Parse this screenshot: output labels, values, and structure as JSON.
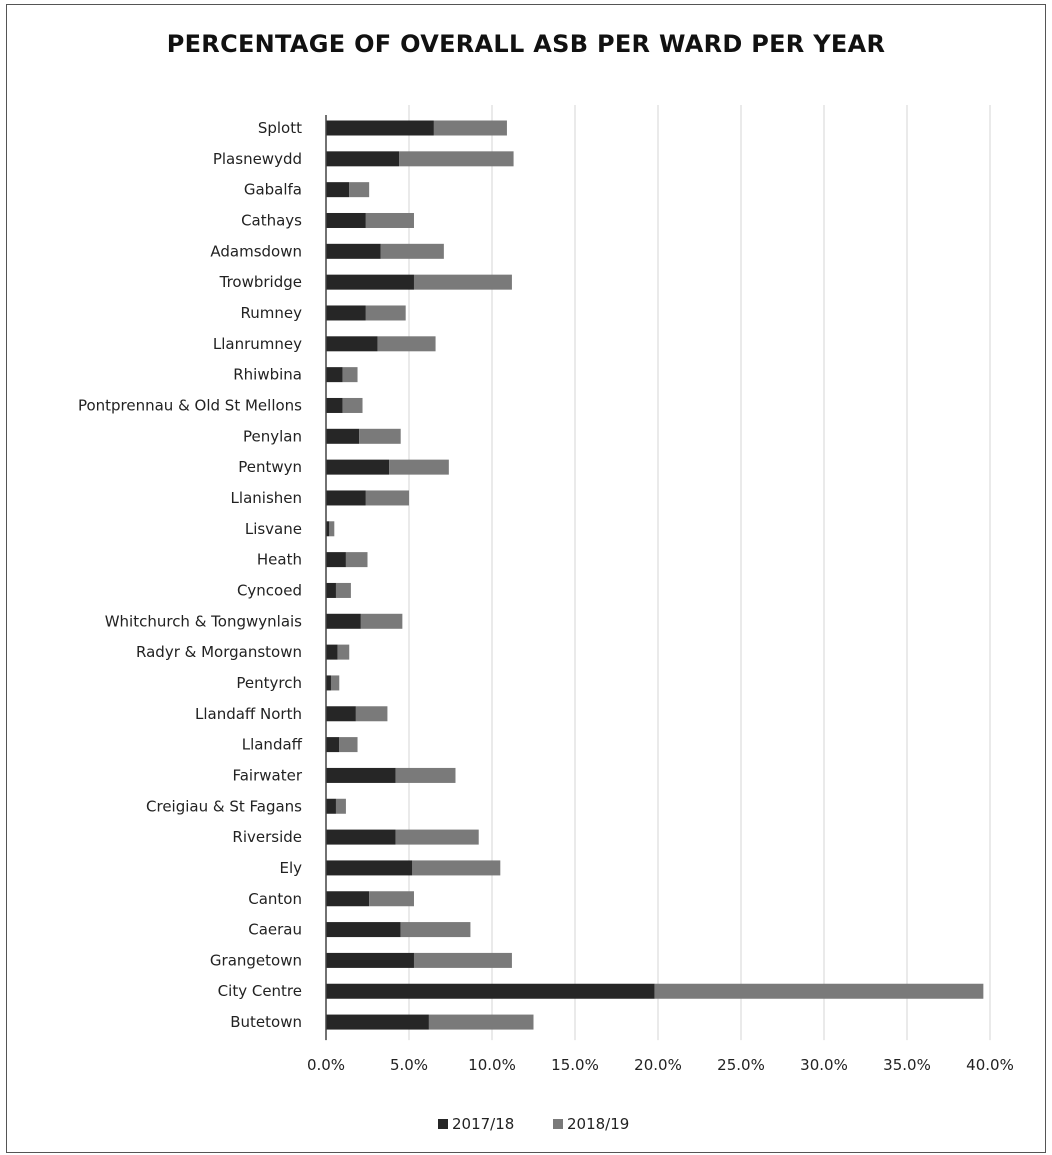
{
  "chart_data": {
    "type": "bar",
    "orientation": "horizontal",
    "stacked": true,
    "title": "PERCENTAGE OF OVERALL ASB PER WARD PER YEAR",
    "categories": [
      "Splott",
      "Plasnewydd",
      "Gabalfa",
      "Cathays",
      "Adamsdown",
      "Trowbridge",
      "Rumney",
      "Llanrumney",
      "Rhiwbina",
      "Pontprennau & Old St Mellons",
      "Penylan",
      "Pentwyn",
      "Llanishen",
      "Lisvane",
      "Heath",
      "Cyncoed",
      "Whitchurch & Tongwynlais",
      "Radyr & Morganstown",
      "Pentyrch",
      "Llandaff North",
      "Llandaff",
      "Fairwater",
      "Creigiau & St Fagans",
      "Riverside",
      "Ely",
      "Canton",
      "Caerau",
      "Grangetown",
      "City Centre",
      "Butetown"
    ],
    "series": [
      {
        "name": "2017/18",
        "color": "#262626",
        "values": [
          6.5,
          4.4,
          1.4,
          2.4,
          3.3,
          5.3,
          2.4,
          3.1,
          1.0,
          1.0,
          2.0,
          3.8,
          2.4,
          0.2,
          1.2,
          0.6,
          2.1,
          0.7,
          0.3,
          1.8,
          0.8,
          4.2,
          0.6,
          4.2,
          5.2,
          2.6,
          4.5,
          5.3,
          19.8,
          6.2
        ]
      },
      {
        "name": "2018/19",
        "color": "#7a7a7a",
        "values": [
          4.4,
          6.9,
          1.2,
          2.9,
          3.8,
          5.9,
          2.4,
          3.5,
          0.9,
          1.2,
          2.5,
          3.6,
          2.6,
          0.3,
          1.3,
          0.9,
          2.5,
          0.7,
          0.5,
          1.9,
          1.1,
          3.6,
          0.6,
          5.0,
          5.3,
          2.7,
          4.2,
          5.9,
          19.8,
          6.3
        ]
      }
    ],
    "xlim": [
      0,
      40
    ],
    "xticks": [
      "0.0%",
      "5.0%",
      "10.0%",
      "15.0%",
      "20.0%",
      "25.0%",
      "30.0%",
      "35.0%",
      "40.0%"
    ],
    "grid": true,
    "legend": "bottom"
  }
}
